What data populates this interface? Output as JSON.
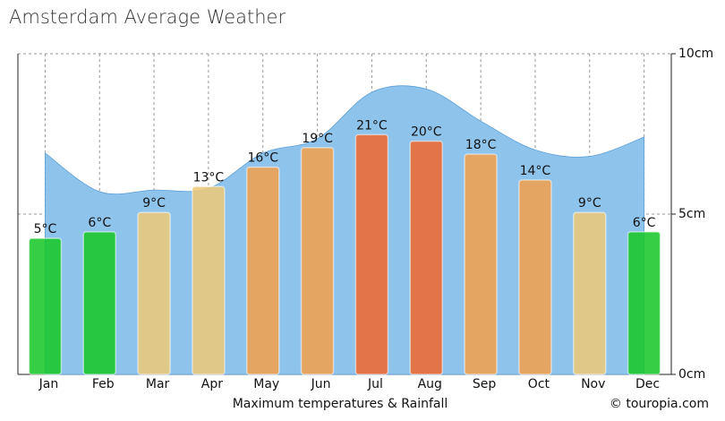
{
  "chart_data": {
    "type": "bar",
    "title": "Amsterdam Average Weather",
    "x_label": "Maximum temperatures & Rainfall",
    "credit": "© touropia.com",
    "categories": [
      "Jan",
      "Feb",
      "Mar",
      "Apr",
      "May",
      "Jun",
      "Jul",
      "Aug",
      "Sep",
      "Oct",
      "Nov",
      "Dec"
    ],
    "values": [
      5,
      6,
      9,
      13,
      16,
      19,
      21,
      20,
      18,
      14,
      9,
      6
    ],
    "value_labels": [
      "5°C",
      "6°C",
      "9°C",
      "13°C",
      "16°C",
      "19°C",
      "21°C",
      "20°C",
      "18°C",
      "14°C",
      "9°C",
      "6°C"
    ],
    "colors": [
      "#19c72a",
      "#19c72a",
      "#ecc87a",
      "#ecc87a",
      "#f0a050",
      "#f0a050",
      "#ee6a30",
      "#ee6a30",
      "#f0a050",
      "#f0a050",
      "#ecc87a",
      "#19c72a"
    ],
    "ylim": [
      -16,
      33.5
    ],
    "rainfall": {
      "type": "area",
      "axis": "y2",
      "color": "#8ec3ec",
      "values": [
        6.9,
        5.7,
        5.75,
        5.8,
        6.9,
        7.35,
        8.8,
        8.9,
        7.9,
        7.0,
        6.8,
        7.4
      ]
    },
    "y2lim": [
      0,
      10
    ],
    "y2ticks": [
      {
        "value": 0,
        "label": "0cm"
      },
      {
        "value": 5,
        "label": "5cm"
      },
      {
        "value": 10,
        "label": "10cm"
      }
    ],
    "grid": true
  }
}
